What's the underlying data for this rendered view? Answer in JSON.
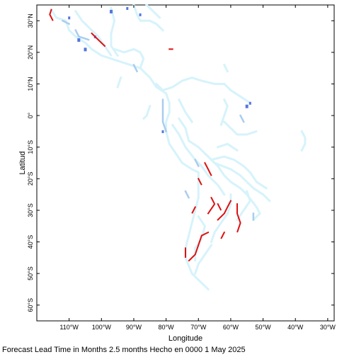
{
  "chart_data": {
    "type": "heatmap",
    "projection": "equirectangular",
    "lon_range": [
      -120,
      -28
    ],
    "lat_range": [
      -65,
      35
    ],
    "xlabel": "Longitude",
    "ylabel": "Latitud",
    "x_ticks": [
      {
        "lon": -110,
        "label": "110°W"
      },
      {
        "lon": -100,
        "label": "100°W"
      },
      {
        "lon": -90,
        "label": "90°W"
      },
      {
        "lon": -80,
        "label": "80°W"
      },
      {
        "lon": -70,
        "label": "70°W"
      },
      {
        "lon": -60,
        "label": "60°W"
      },
      {
        "lon": -50,
        "label": "50°W"
      },
      {
        "lon": -40,
        "label": "40°W"
      },
      {
        "lon": -30,
        "label": "30°W"
      }
    ],
    "y_ticks": [
      {
        "lat": 30,
        "label": "30°N"
      },
      {
        "lat": 20,
        "label": "20°N"
      },
      {
        "lat": 10,
        "label": "10°N"
      },
      {
        "lat": 0,
        "label": "0°"
      },
      {
        "lat": -10,
        "label": "10°S"
      },
      {
        "lat": -20,
        "label": "20°S"
      },
      {
        "lat": -30,
        "label": "30°S"
      },
      {
        "lat": -40,
        "label": "40°S"
      },
      {
        "lat": -50,
        "label": "50°S"
      },
      {
        "lat": -60,
        "label": "60°S"
      }
    ],
    "colors": {
      "light": "#d6f3fb",
      "medium": "#a9cdee",
      "strong": "#5577dd",
      "red": "#dd1111"
    },
    "light_polylines": [
      [
        [
          -115.5,
          33.5
        ],
        [
          -114,
          31
        ],
        [
          -111,
          30
        ],
        [
          -110,
          27
        ],
        [
          -108,
          25
        ],
        [
          -105,
          23
        ],
        [
          -103,
          21
        ],
        [
          -100,
          19
        ],
        [
          -97,
          18
        ],
        [
          -94,
          17
        ],
        [
          -91,
          16
        ],
        [
          -88,
          15
        ],
        [
          -85,
          12
        ],
        [
          -83,
          9
        ],
        [
          -80,
          7
        ],
        [
          -79,
          4
        ],
        [
          -79,
          1
        ],
        [
          -80,
          -2
        ],
        [
          -80,
          -5
        ],
        [
          -79,
          -9
        ],
        [
          -77,
          -12
        ],
        [
          -75,
          -15
        ],
        [
          -72,
          -17
        ],
        [
          -70,
          -18
        ],
        [
          -70,
          -22
        ],
        [
          -70,
          -26
        ],
        [
          -71,
          -30
        ],
        [
          -72,
          -34
        ],
        [
          -73,
          -38
        ],
        [
          -74,
          -42
        ],
        [
          -74,
          -45
        ],
        [
          -72,
          -50
        ],
        [
          -69,
          -53
        ],
        [
          -67,
          -55
        ]
      ],
      [
        [
          -108,
          33
        ],
        [
          -106,
          30
        ],
        [
          -104,
          28
        ],
        [
          -101,
          25
        ],
        [
          -99,
          22
        ],
        [
          -97,
          19
        ]
      ],
      [
        [
          -97,
          34
        ],
        [
          -96,
          30
        ],
        [
          -97,
          26
        ],
        [
          -97,
          22
        ],
        [
          -95,
          19
        ]
      ],
      [
        [
          -96,
          21
        ],
        [
          -93,
          20
        ],
        [
          -90,
          21
        ],
        [
          -88,
          20
        ],
        [
          -87,
          18
        ],
        [
          -88,
          15
        ]
      ],
      [
        [
          -90,
          35
        ],
        [
          -89,
          32
        ],
        [
          -88,
          30
        ],
        [
          -85,
          30
        ],
        [
          -83,
          29
        ],
        [
          -81,
          27
        ]
      ],
      [
        [
          -86,
          35
        ],
        [
          -84,
          33
        ],
        [
          -82,
          31
        ]
      ],
      [
        [
          -83,
          10
        ],
        [
          -81,
          8
        ],
        [
          -78,
          9
        ],
        [
          -75,
          11
        ],
        [
          -72,
          12
        ],
        [
          -69,
          11
        ],
        [
          -65,
          10
        ],
        [
          -62,
          10
        ],
        [
          -60,
          8
        ],
        [
          -57,
          6
        ],
        [
          -54,
          4
        ]
      ],
      [
        [
          -76,
          5
        ],
        [
          -75,
          3
        ],
        [
          -74,
          1
        ],
        [
          -72,
          -2
        ]
      ],
      [
        [
          -78,
          -3
        ],
        [
          -76,
          -6
        ],
        [
          -74,
          -10
        ],
        [
          -71,
          -14
        ],
        [
          -69,
          -16
        ],
        [
          -67,
          -19
        ],
        [
          -64,
          -22
        ],
        [
          -62,
          -25
        ]
      ],
      [
        [
          -76,
          -1
        ],
        [
          -74,
          -4
        ],
        [
          -73,
          -8
        ],
        [
          -70,
          -10
        ],
        [
          -67,
          -13
        ],
        [
          -64,
          -16
        ],
        [
          -62,
          -19
        ],
        [
          -60,
          -21
        ],
        [
          -57,
          -23
        ],
        [
          -55,
          -25
        ],
        [
          -52,
          -29
        ],
        [
          -51,
          -31
        ],
        [
          -53,
          -33
        ]
      ],
      [
        [
          -68,
          -12
        ],
        [
          -65,
          -15
        ],
        [
          -60,
          -17
        ],
        [
          -57,
          -19
        ],
        [
          -55,
          -21
        ],
        [
          -53,
          -23
        ],
        [
          -50,
          -25
        ],
        [
          -48,
          -27
        ]
      ],
      [
        [
          -66,
          -14
        ],
        [
          -62,
          -13
        ],
        [
          -59,
          -14
        ],
        [
          -56,
          -16
        ],
        [
          -54,
          -18
        ],
        [
          -52,
          -21
        ],
        [
          -49,
          -23
        ]
      ],
      [
        [
          -64,
          -10
        ],
        [
          -61,
          -9
        ],
        [
          -58,
          -11
        ]
      ],
      [
        [
          -60,
          -25
        ],
        [
          -60,
          -28
        ],
        [
          -61,
          -31
        ],
        [
          -63,
          -34
        ],
        [
          -65,
          -37
        ],
        [
          -66,
          -40
        ]
      ],
      [
        [
          -55,
          -24
        ],
        [
          -54,
          -27
        ],
        [
          -56,
          -30
        ],
        [
          -58,
          -33
        ]
      ],
      [
        [
          -70,
          -32
        ],
        [
          -68,
          -35
        ],
        [
          -69,
          -39
        ],
        [
          -71,
          -42
        ],
        [
          -71,
          -46
        ]
      ],
      [
        [
          -66,
          -41
        ],
        [
          -68,
          -44
        ],
        [
          -70,
          -47
        ],
        [
          -71,
          -50
        ]
      ],
      [
        [
          -62,
          -2
        ],
        [
          -60,
          -4
        ],
        [
          -58,
          -6
        ],
        [
          -55,
          -6
        ],
        [
          -52,
          -5
        ]
      ],
      [
        [
          -62,
          5
        ],
        [
          -61,
          3
        ],
        [
          -62,
          0
        ],
        [
          -63,
          -3
        ]
      ],
      [
        [
          -38,
          -5
        ],
        [
          -37,
          -7
        ],
        [
          -37,
          -9
        ],
        [
          -38,
          -11
        ]
      ],
      [
        [
          -85,
          3
        ],
        [
          -86,
          0
        ],
        [
          -87,
          -1
        ]
      ],
      [
        [
          -94,
          12
        ],
        [
          -95,
          9
        ]
      ],
      [
        [
          -62,
          16
        ],
        [
          -61,
          14
        ]
      ]
    ],
    "medium_polylines": [
      [
        [
          -108,
          27
        ],
        [
          -107,
          25
        ],
        [
          -104,
          24
        ]
      ],
      [
        [
          -112,
          30
        ],
        [
          -110,
          29
        ]
      ],
      [
        [
          -81,
          5
        ],
        [
          -81,
          2
        ],
        [
          -81,
          -2
        ],
        [
          -80,
          -5
        ]
      ],
      [
        [
          -90,
          16
        ],
        [
          -89,
          14
        ]
      ],
      [
        [
          -74,
          -24
        ],
        [
          -73,
          -26
        ]
      ],
      [
        [
          -57,
          0
        ],
        [
          -56,
          -2
        ]
      ],
      [
        [
          -71,
          -14
        ],
        [
          -70,
          -16
        ]
      ],
      [
        [
          -53,
          -31
        ],
        [
          -53,
          -33
        ]
      ]
    ],
    "strong_marks": [
      [
        -107,
        24,
        2
      ],
      [
        -105,
        21,
        2
      ],
      [
        -102,
        25,
        1
      ],
      [
        -97,
        33,
        2
      ],
      [
        -92,
        34,
        1
      ],
      [
        -88,
        32,
        1
      ],
      [
        -81,
        -5,
        1
      ],
      [
        -55,
        3,
        2
      ],
      [
        -54,
        4,
        1
      ],
      [
        -110,
        31,
        1
      ]
    ],
    "red_polylines": [
      [
        [
          -115.5,
          33.5
        ],
        [
          -116,
          32
        ],
        [
          -115,
          30
        ]
      ],
      [
        [
          -103,
          26
        ],
        [
          -101,
          24
        ],
        [
          -99,
          22
        ]
      ],
      [
        [
          -68,
          -15
        ],
        [
          -67,
          -17
        ],
        [
          -66,
          -19
        ]
      ],
      [
        [
          -70,
          -20
        ],
        [
          -69,
          -22
        ]
      ],
      [
        [
          -66,
          -26
        ],
        [
          -65,
          -28
        ],
        [
          -67,
          -31
        ]
      ],
      [
        [
          -64,
          -28
        ],
        [
          -63,
          -30
        ]
      ],
      [
        [
          -60,
          -27
        ],
        [
          -61,
          -29
        ],
        [
          -62,
          -31
        ],
        [
          -64,
          -33
        ]
      ],
      [
        [
          -58,
          -28
        ],
        [
          -58,
          -31
        ],
        [
          -57,
          -34
        ],
        [
          -58,
          -37
        ]
      ],
      [
        [
          -71,
          -29
        ],
        [
          -72,
          -31
        ]
      ],
      [
        [
          -69,
          -38
        ],
        [
          -70,
          -41
        ],
        [
          -71,
          -44
        ],
        [
          -73,
          -46
        ]
      ],
      [
        [
          -67,
          -37
        ],
        [
          -69,
          -38
        ]
      ],
      [
        [
          -62,
          -37
        ],
        [
          -63,
          -39
        ]
      ],
      [
        [
          -74,
          -42
        ],
        [
          -74,
          -45
        ]
      ],
      [
        [
          -79,
          21
        ],
        [
          -78,
          21
        ]
      ]
    ]
  },
  "footer": "Forecast Lead Time in Months 2.5 months Hecho en 0000 1 May 2025"
}
